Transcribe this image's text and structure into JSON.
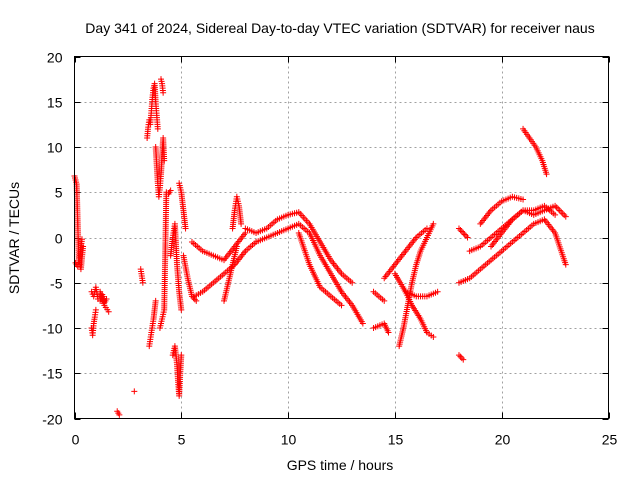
{
  "chart_data": {
    "type": "scatter",
    "title": "Day 341 of 2024, Sidereal Day-to-day VTEC variation (SDTVAR) for receiver naus",
    "xlabel": "GPS time / hours",
    "ylabel": "SDTVAR / TECUs",
    "xlim": [
      0,
      25
    ],
    "ylim": [
      -20,
      20
    ],
    "xticks": [
      0,
      5,
      10,
      15,
      20,
      25
    ],
    "yticks": [
      -20,
      -15,
      -10,
      -5,
      0,
      5,
      10,
      15,
      20
    ],
    "grid": true,
    "marker": "plus",
    "color": "#ff0000",
    "series": [
      {
        "name": "t0",
        "x": [
          0.0,
          0.1,
          0.2,
          0.3,
          0.4
        ],
        "y": [
          6.8,
          5.9,
          -2.5,
          -3.5,
          -1.0
        ]
      },
      {
        "name": "t1",
        "x": [
          0.05,
          0.15,
          0.25,
          0.35
        ],
        "y": [
          -2.8,
          -3.2,
          -2.0,
          -0.2
        ]
      },
      {
        "name": "t2",
        "x": [
          0.8,
          0.85,
          0.9,
          0.95,
          1.0
        ],
        "y": [
          -10.0,
          -10.8,
          -9.5,
          -8.8,
          -8.0
        ]
      },
      {
        "name": "t3",
        "x": [
          0.8,
          0.9,
          1.0,
          1.1,
          1.2,
          1.3,
          1.4,
          1.5
        ],
        "y": [
          -6.0,
          -6.5,
          -5.5,
          -6.8,
          -7.0,
          -6.3,
          -7.2,
          -6.8
        ]
      },
      {
        "name": "t4",
        "x": [
          1.2,
          1.4,
          1.6
        ],
        "y": [
          -6.0,
          -7.5,
          -8.2
        ]
      },
      {
        "name": "t5",
        "x": [
          2.0,
          2.1
        ],
        "y": [
          -19.2,
          -19.6
        ]
      },
      {
        "name": "t6",
        "x": [
          2.8
        ],
        "y": [
          -17.0
        ]
      },
      {
        "name": "t7",
        "x": [
          3.1,
          3.2
        ],
        "y": [
          -3.5,
          -5.0
        ]
      },
      {
        "name": "t8",
        "x": [
          3.4,
          3.45,
          3.5,
          3.55,
          3.6,
          3.65,
          3.7,
          3.75,
          3.8,
          3.85,
          3.9
        ],
        "y": [
          11.0,
          12.2,
          13.0,
          12.5,
          14.0,
          15.5,
          16.5,
          17.0,
          15.0,
          13.5,
          12.0
        ]
      },
      {
        "name": "t9",
        "x": [
          3.5,
          3.6,
          3.7,
          3.8
        ],
        "y": [
          -12.0,
          -10.5,
          -9.0,
          -7.0
        ]
      },
      {
        "name": "t10",
        "x": [
          3.8,
          3.85,
          3.9,
          3.95,
          4.0,
          4.05,
          4.1,
          4.15,
          4.2
        ],
        "y": [
          10.0,
          8.0,
          6.0,
          4.5,
          5.5,
          7.0,
          9.0,
          11.0,
          8.5
        ]
      },
      {
        "name": "t11",
        "x": [
          4.05,
          4.1,
          4.15
        ],
        "y": [
          17.5,
          17.0,
          16.0
        ]
      },
      {
        "name": "t12",
        "x": [
          4.0,
          4.1,
          4.2,
          4.3,
          4.4,
          4.5
        ],
        "y": [
          -10.0,
          -9.0,
          -8.0,
          5.0,
          4.8,
          5.2
        ]
      },
      {
        "name": "t13",
        "x": [
          4.6,
          4.7,
          4.8,
          4.85,
          4.9,
          4.95,
          5.0
        ],
        "y": [
          -13.0,
          -12.0,
          -14.0,
          -16.0,
          -17.5,
          -15.0,
          -13.0
        ]
      },
      {
        "name": "t14",
        "x": [
          4.5,
          4.6,
          4.7,
          4.8,
          4.9,
          5.0
        ],
        "y": [
          -2.0,
          0.0,
          1.5,
          -3.0,
          -6.0,
          -8.0
        ]
      },
      {
        "name": "t15",
        "x": [
          4.9,
          5.0,
          5.1,
          5.2
        ],
        "y": [
          6.0,
          5.0,
          3.0,
          1.0
        ]
      },
      {
        "name": "t16",
        "x": [
          5.1,
          5.3,
          5.5,
          5.7
        ],
        "y": [
          -2.0,
          -4.5,
          -6.5,
          -7.0
        ]
      },
      {
        "name": "t17",
        "x": [
          5.5,
          6.0,
          6.5,
          7.0,
          7.5,
          8.0
        ],
        "y": [
          -0.5,
          -1.5,
          -2.0,
          -2.5,
          -1.0,
          0.5
        ]
      },
      {
        "name": "t18",
        "x": [
          5.6,
          6.0,
          6.5,
          7.0,
          7.5,
          8.0,
          8.5
        ],
        "y": [
          -6.5,
          -6.0,
          -5.0,
          -4.0,
          -3.0,
          -1.5,
          -0.5
        ]
      },
      {
        "name": "t19",
        "x": [
          7.4,
          7.5,
          7.6,
          7.7,
          7.8
        ],
        "y": [
          1.0,
          3.0,
          4.5,
          3.5,
          1.5
        ]
      },
      {
        "name": "t20",
        "x": [
          7.0,
          7.2,
          7.4,
          7.6
        ],
        "y": [
          -7.0,
          -5.0,
          -3.0,
          -1.0
        ]
      },
      {
        "name": "t21",
        "x": [
          8.0,
          8.5,
          9.0,
          9.5,
          10.0,
          10.5,
          11.0,
          11.5,
          12.0,
          12.5,
          13.0
        ],
        "y": [
          1.0,
          0.5,
          1.0,
          2.0,
          2.5,
          2.8,
          1.5,
          -0.5,
          -2.5,
          -4.0,
          -5.0
        ]
      },
      {
        "name": "t22",
        "x": [
          8.5,
          9.0,
          9.5,
          10.0,
          10.5,
          11.0,
          11.5,
          12.0,
          12.5,
          13.0,
          13.5
        ],
        "y": [
          -0.5,
          0.0,
          0.5,
          1.0,
          1.5,
          0.5,
          -2.0,
          -4.0,
          -6.0,
          -7.5,
          -9.5
        ]
      },
      {
        "name": "t23",
        "x": [
          10.5,
          11.0,
          11.5,
          12.0,
          12.5
        ],
        "y": [
          0.5,
          -3.0,
          -5.5,
          -6.5,
          -7.5
        ]
      },
      {
        "name": "t24",
        "x": [
          14.0,
          14.5
        ],
        "y": [
          -6.0,
          -7.0
        ]
      },
      {
        "name": "t25",
        "x": [
          14.0,
          14.5,
          14.7
        ],
        "y": [
          -10.0,
          -9.5,
          -10.5
        ]
      },
      {
        "name": "t26",
        "x": [
          14.5,
          15.0,
          15.5,
          16.0,
          16.5
        ],
        "y": [
          -4.5,
          -3.0,
          -1.5,
          0.0,
          1.0
        ]
      },
      {
        "name": "t27",
        "x": [
          15.2,
          15.4,
          15.6,
          15.8,
          16.0,
          16.2,
          16.5,
          16.8
        ],
        "y": [
          -12.0,
          -10.0,
          -7.5,
          -5.0,
          -3.0,
          -1.5,
          0.0,
          1.5
        ]
      },
      {
        "name": "t28",
        "x": [
          15.0,
          15.5,
          16.0,
          16.5,
          17.0
        ],
        "y": [
          -4.0,
          -6.0,
          -6.5,
          -6.5,
          -6.0
        ]
      },
      {
        "name": "t29",
        "x": [
          15.5,
          15.8,
          16.2,
          16.5,
          16.8
        ],
        "y": [
          -6.0,
          -7.5,
          -9.0,
          -10.5,
          -11.0
        ]
      },
      {
        "name": "t30",
        "x": [
          18.0,
          18.2,
          18.4
        ],
        "y": [
          1.0,
          0.5,
          0.0
        ]
      },
      {
        "name": "t31",
        "x": [
          18.0,
          18.2
        ],
        "y": [
          -13.0,
          -13.5
        ]
      },
      {
        "name": "t32",
        "x": [
          18.0,
          18.5,
          19.0,
          19.5,
          20.0,
          20.5,
          21.0,
          21.5,
          22.0,
          22.5,
          23.0
        ],
        "y": [
          -5.0,
          -4.5,
          -3.5,
          -2.5,
          -1.5,
          -0.5,
          0.5,
          1.5,
          2.0,
          0.5,
          -3.0
        ]
      },
      {
        "name": "t33",
        "x": [
          18.5,
          19.0,
          19.5,
          20.0,
          20.5,
          21.0,
          21.5,
          22.0,
          22.5
        ],
        "y": [
          -1.5,
          -1.0,
          0.0,
          1.0,
          2.0,
          3.0,
          3.0,
          3.5,
          2.5
        ]
      },
      {
        "name": "t34",
        "x": [
          19.0,
          19.5,
          20.0,
          20.5,
          21.0
        ],
        "y": [
          1.5,
          3.0,
          4.0,
          4.5,
          4.2
        ]
      },
      {
        "name": "t35",
        "x": [
          19.5,
          20.0,
          20.5,
          21.0,
          21.5,
          22.0,
          22.5,
          23.0
        ],
        "y": [
          -1.0,
          0.5,
          2.0,
          3.0,
          2.5,
          3.0,
          3.5,
          2.3
        ]
      },
      {
        "name": "t36",
        "x": [
          21.0,
          21.3,
          21.6,
          21.9,
          22.1
        ],
        "y": [
          12.0,
          11.0,
          10.0,
          8.5,
          7.0
        ]
      }
    ]
  }
}
